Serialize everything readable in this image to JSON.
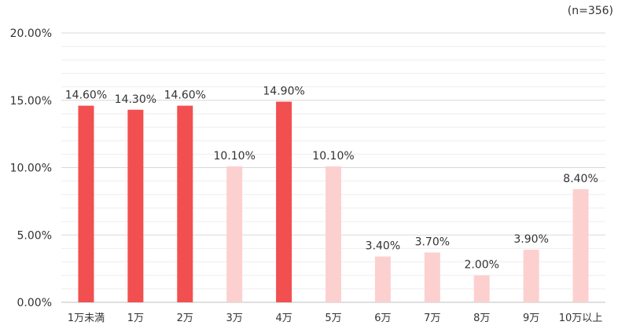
{
  "note": "(n=356)",
  "colors": {
    "highlight": "#f24f50",
    "normal": "#fdd0d0",
    "grid_major": "#d9d9d9",
    "grid_minor": "#eeeeee",
    "text": "#333333"
  },
  "chart_data": {
    "type": "bar",
    "title": "",
    "xlabel": "",
    "ylabel": "",
    "categories": [
      "1万未満",
      "1万",
      "2万",
      "3万",
      "4万",
      "5万",
      "6万",
      "7万",
      "8万",
      "9万",
      "10万以上"
    ],
    "values": [
      14.6,
      14.3,
      14.6,
      10.1,
      14.9,
      10.1,
      3.4,
      3.7,
      2.0,
      3.9,
      8.4
    ],
    "value_labels": [
      "14.60%",
      "14.30%",
      "14.60%",
      "10.10%",
      "14.90%",
      "10.10%",
      "3.40%",
      "3.70%",
      "2.00%",
      "3.90%",
      "8.40%"
    ],
    "highlighted": [
      true,
      true,
      true,
      false,
      true,
      false,
      false,
      false,
      false,
      false,
      false
    ],
    "ylim": [
      0,
      20
    ],
    "yticks": [
      0,
      5,
      10,
      15,
      20
    ],
    "ytick_labels": [
      "0.00%",
      "5.00%",
      "10.00%",
      "15.00%",
      "20.00%"
    ],
    "grid": true,
    "legend": "none"
  }
}
